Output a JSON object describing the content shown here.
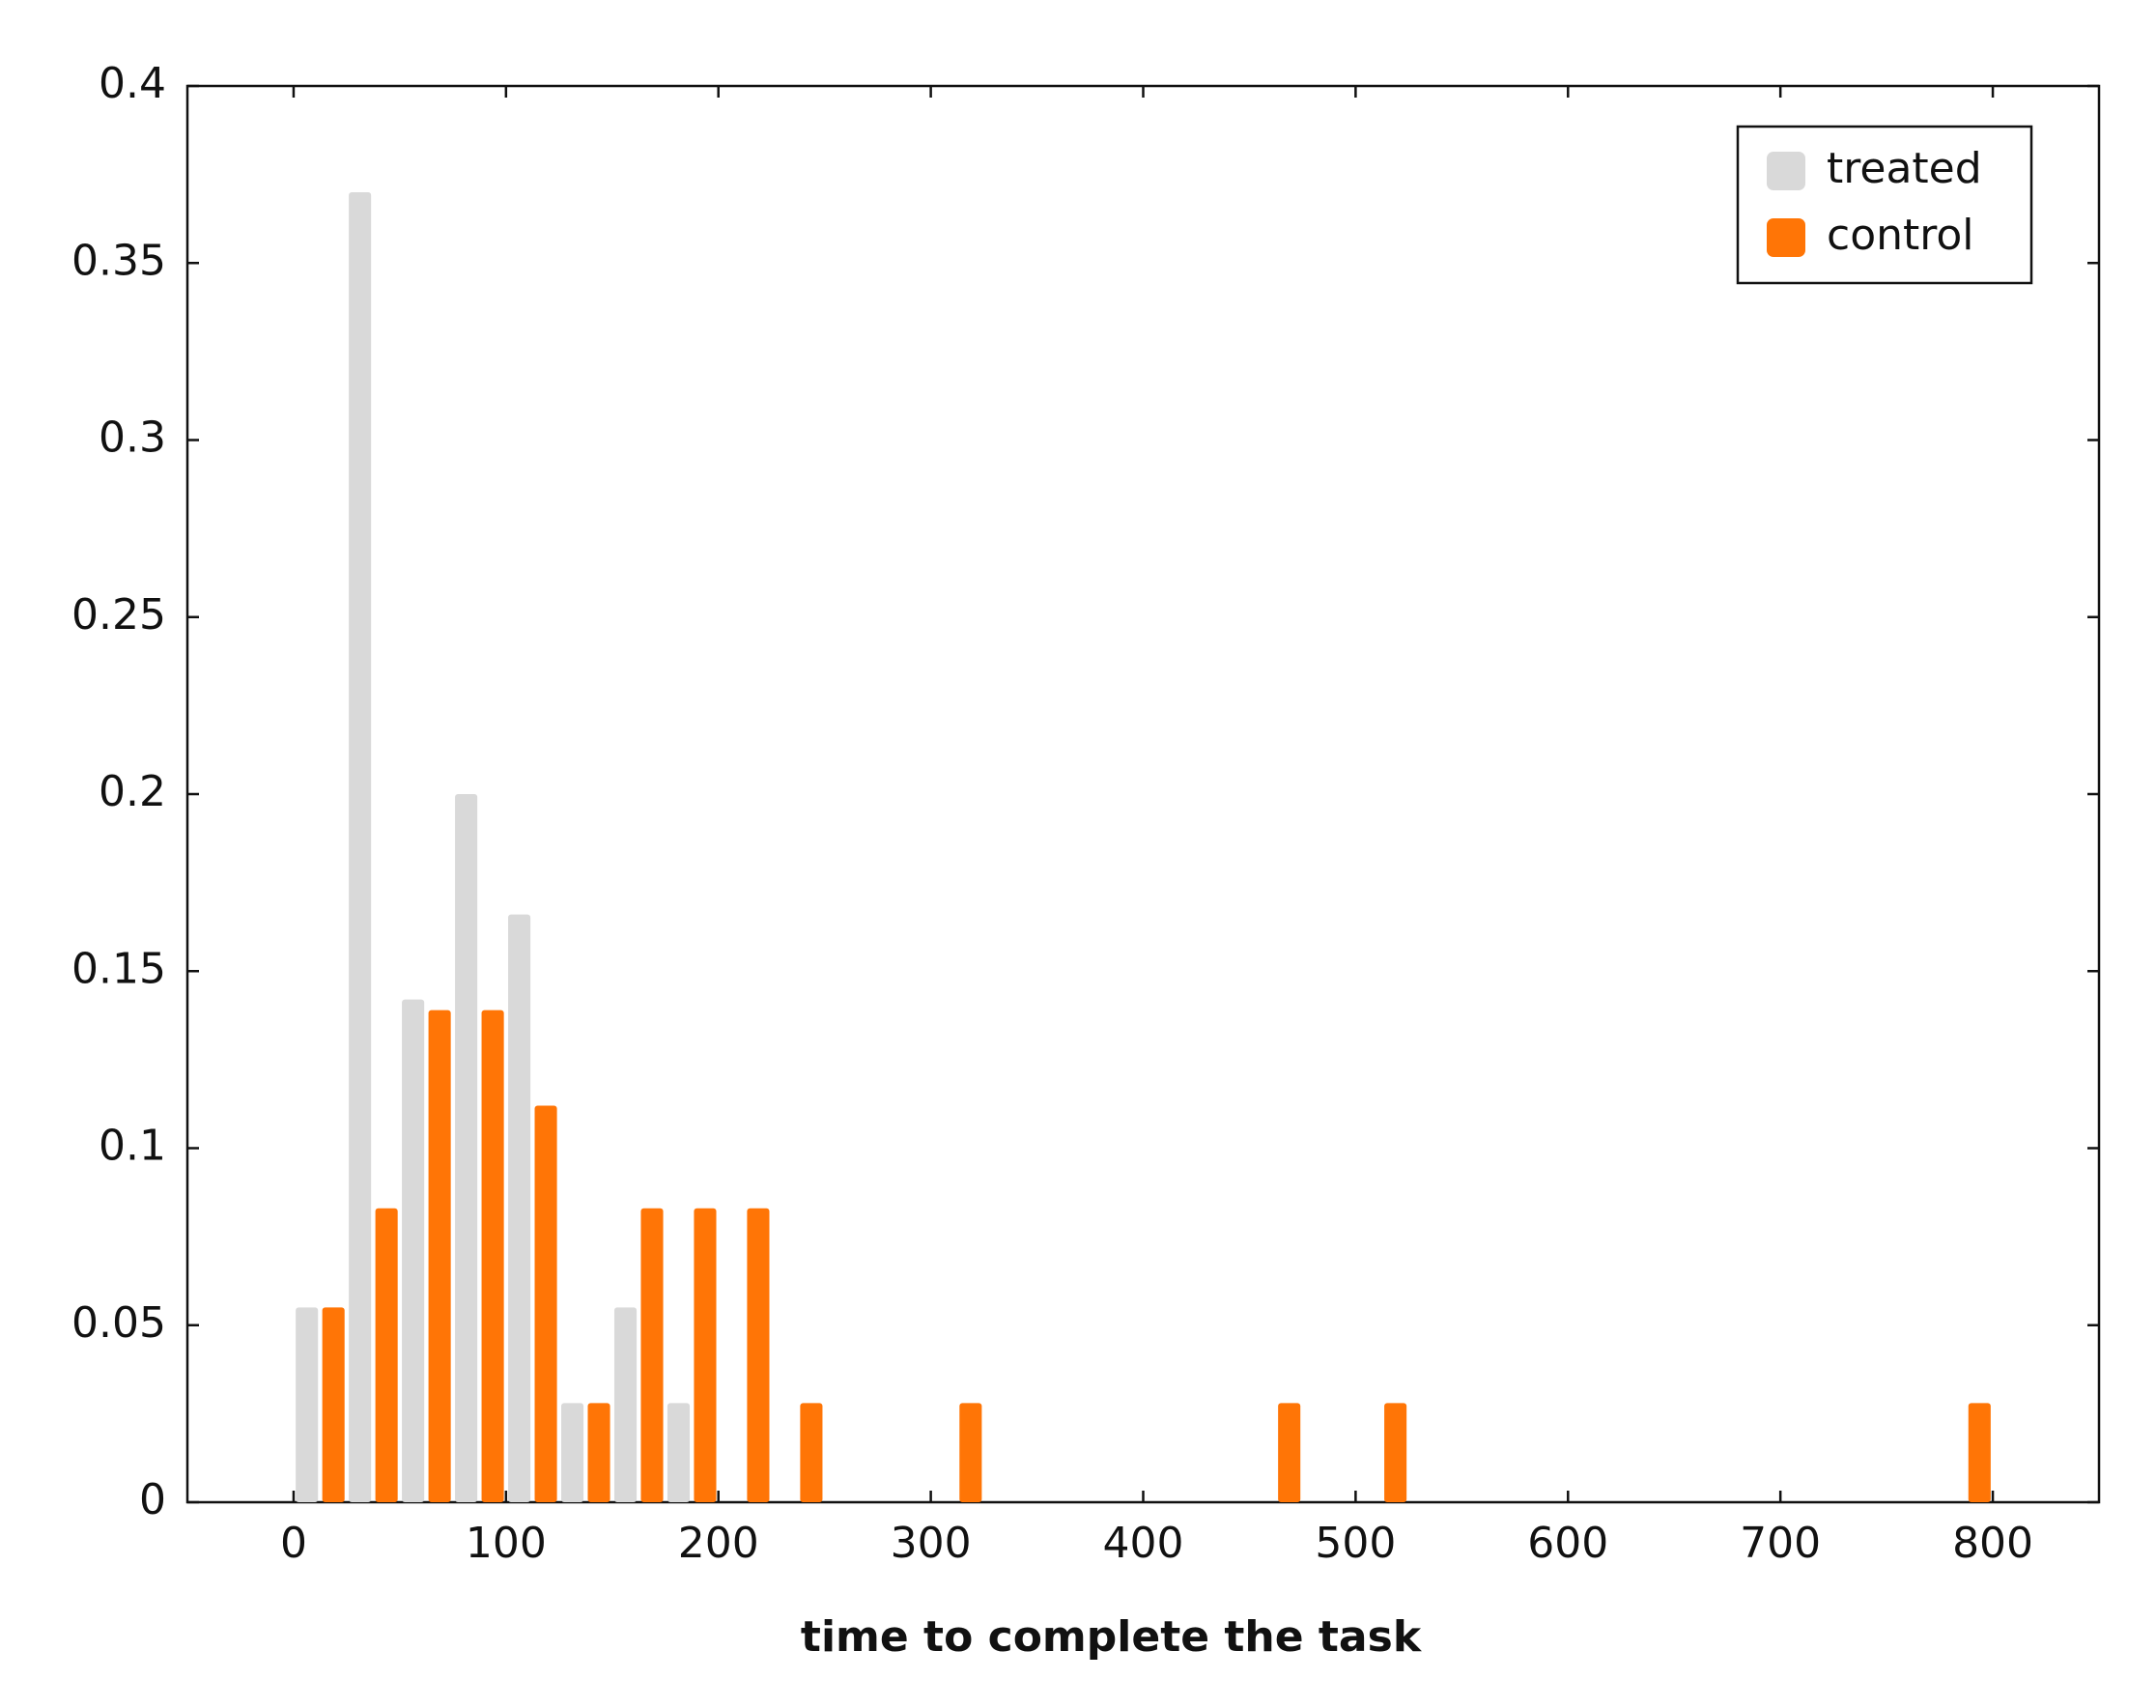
{
  "chart_data": {
    "type": "histogram",
    "x_label": "time to complete the task",
    "bins": [
      0,
      25,
      50,
      75,
      100,
      125,
      150,
      175,
      200,
      225,
      250,
      275,
      300,
      325,
      350,
      375,
      400,
      425,
      450,
      475,
      500,
      525,
      550,
      575,
      600,
      625,
      650,
      675,
      700,
      725,
      750,
      775,
      800
    ],
    "series": [
      {
        "name": "treated",
        "color": "#d9d9d9",
        "values": [
          0.055,
          0.37,
          0.142,
          0.2,
          0.166,
          0.028,
          0.055,
          0.028,
          0,
          0,
          0,
          0,
          0,
          0,
          0,
          0,
          0,
          0,
          0,
          0,
          0,
          0,
          0,
          0,
          0,
          0,
          0,
          0,
          0,
          0,
          0,
          0
        ]
      },
      {
        "name": "control",
        "color": "#ff7506",
        "values": [
          0.055,
          0.083,
          0.139,
          0.139,
          0.112,
          0.028,
          0.083,
          0.083,
          0.083,
          0.028,
          0,
          0,
          0.028,
          0,
          0,
          0,
          0,
          0,
          0.028,
          0,
          0.028,
          0,
          0,
          0,
          0,
          0,
          0,
          0,
          0,
          0,
          0,
          0.028
        ]
      }
    ],
    "xlim": [
      -50,
      850
    ],
    "xticks": [
      0,
      100,
      200,
      300,
      400,
      500,
      600,
      700,
      800
    ],
    "ylim": [
      0,
      0.4
    ],
    "yticks": [
      0,
      0.05,
      0.1,
      0.15,
      0.2,
      0.25,
      0.3,
      0.35,
      0.4
    ],
    "grid": false,
    "legend": "upper right"
  }
}
